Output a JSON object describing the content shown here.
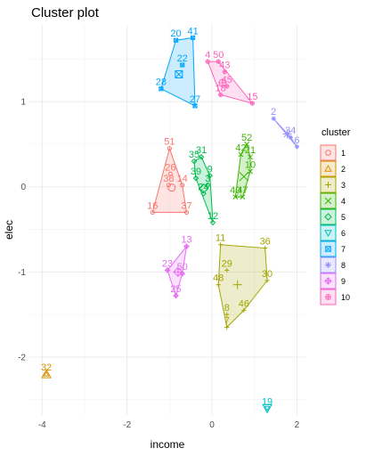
{
  "chart_data": {
    "type": "scatter",
    "title": "Cluster plot",
    "xlabel": "income",
    "ylabel": "elec",
    "xlim": [
      -4.3,
      2.2
    ],
    "ylim": [
      -2.68,
      1.9
    ],
    "xticks": [
      -4,
      -2,
      0,
      2
    ],
    "yticks": [
      -2,
      -1,
      0,
      1
    ],
    "grid": true,
    "legend": {
      "title": "cluster",
      "position": "right"
    },
    "series": [
      {
        "name": "1",
        "color": "#F8766D",
        "shape": "circle",
        "points": [
          {
            "label": "51",
            "x": -1.0,
            "y": 0.45
          },
          {
            "label": "26",
            "x": -0.98,
            "y": 0.15
          },
          {
            "label": "38",
            "x": -1.02,
            "y": 0.02
          },
          {
            "label": "14",
            "x": -0.7,
            "y": 0.02
          },
          {
            "label": "16",
            "x": -1.4,
            "y": -0.3
          },
          {
            "label": "37",
            "x": -0.6,
            "y": -0.3
          }
        ],
        "centroid": {
          "x": -0.95,
          "y": -0.01
        }
      },
      {
        "name": "2",
        "color": "#D89000",
        "shape": "triangle",
        "points": [
          {
            "label": "32",
            "x": -3.9,
            "y": -2.2
          }
        ],
        "centroid": {
          "x": -3.9,
          "y": -2.2
        }
      },
      {
        "name": "3",
        "color": "#A3A500",
        "shape": "plus",
        "points": [
          {
            "label": "11",
            "x": 0.2,
            "y": -0.68
          },
          {
            "label": "36",
            "x": 1.25,
            "y": -0.72
          },
          {
            "label": "29",
            "x": 0.35,
            "y": -0.98
          },
          {
            "label": "30",
            "x": 1.3,
            "y": -1.1
          },
          {
            "label": "48",
            "x": 0.15,
            "y": -1.15
          },
          {
            "label": "46",
            "x": 0.75,
            "y": -1.45
          },
          {
            "label": "8",
            "x": 0.35,
            "y": -1.5
          },
          {
            "label": "7",
            "x": 0.35,
            "y": -1.65
          }
        ],
        "centroid": {
          "x": 0.6,
          "y": -1.15
        }
      },
      {
        "name": "4",
        "color": "#39B600",
        "shape": "x",
        "points": [
          {
            "label": "52",
            "x": 0.82,
            "y": 0.5
          },
          {
            "label": "42",
            "x": 0.68,
            "y": 0.38
          },
          {
            "label": "21",
            "x": 0.9,
            "y": 0.35
          },
          {
            "label": "10",
            "x": 0.9,
            "y": 0.18
          },
          {
            "label": "40",
            "x": 0.55,
            "y": -0.12
          },
          {
            "label": "47",
            "x": 0.72,
            "y": -0.12
          }
        ],
        "centroid": {
          "x": 0.75,
          "y": 0.12
        }
      },
      {
        "name": "5",
        "color": "#00BB4E",
        "shape": "diamond",
        "points": [
          {
            "label": "31",
            "x": -0.25,
            "y": 0.35
          },
          {
            "label": "35",
            "x": -0.42,
            "y": 0.3
          },
          {
            "label": "9",
            "x": -0.05,
            "y": 0.13
          },
          {
            "label": "39",
            "x": -0.38,
            "y": 0.1
          },
          {
            "label": "3",
            "x": -0.1,
            "y": 0.02
          },
          {
            "label": "24",
            "x": -0.2,
            "y": -0.08
          },
          {
            "label": "12",
            "x": 0.02,
            "y": -0.42
          }
        ],
        "centroid": {
          "x": -0.2,
          "y": -0.02
        }
      },
      {
        "name": "6",
        "color": "#00BFC4",
        "shape": "triangle-down",
        "points": [
          {
            "label": "19",
            "x": 1.3,
            "y": -2.6
          }
        ],
        "centroid": {
          "x": 1.3,
          "y": -2.6
        }
      },
      {
        "name": "7",
        "color": "#00A5FF",
        "shape": "square-x",
        "points": [
          {
            "label": "20",
            "x": -0.85,
            "y": 1.72
          },
          {
            "label": "41",
            "x": -0.45,
            "y": 1.75
          },
          {
            "label": "22",
            "x": -0.7,
            "y": 1.43
          },
          {
            "label": "28",
            "x": -1.2,
            "y": 1.15
          },
          {
            "label": "27",
            "x": -0.4,
            "y": 0.95
          }
        ],
        "centroid": {
          "x": -0.78,
          "y": 1.32
        }
      },
      {
        "name": "8",
        "color": "#9590FF",
        "shape": "asterisk",
        "points": [
          {
            "label": "2",
            "x": 1.45,
            "y": 0.8
          },
          {
            "label": "34",
            "x": 1.85,
            "y": 0.58
          },
          {
            "label": "6",
            "x": 2.0,
            "y": 0.47
          }
        ],
        "centroid": {
          "x": 1.77,
          "y": 0.62
        }
      },
      {
        "name": "9",
        "color": "#E76BF3",
        "shape": "diamond-plus",
        "points": [
          {
            "label": "13",
            "x": -0.6,
            "y": -0.7
          },
          {
            "label": "23",
            "x": -1.05,
            "y": -0.98
          },
          {
            "label": "50",
            "x": -0.7,
            "y": -1.02
          },
          {
            "label": "25",
            "x": -0.85,
            "y": -1.28
          }
        ],
        "centroid": {
          "x": -0.8,
          "y": -1.0
        }
      },
      {
        "name": "10",
        "color": "#FF62BC",
        "shape": "circle-plus",
        "points": [
          {
            "label": "4",
            "x": -0.1,
            "y": 1.47
          },
          {
            "label": "50",
            "x": 0.15,
            "y": 1.47
          },
          {
            "label": "43",
            "x": 0.3,
            "y": 1.35
          },
          {
            "label": "45",
            "x": 0.35,
            "y": 1.18
          },
          {
            "label": "18",
            "x": 0.2,
            "y": 1.08
          },
          {
            "label": "15",
            "x": 0.95,
            "y": 0.98
          }
        ],
        "centroid": {
          "x": 0.25,
          "y": 1.22
        }
      }
    ]
  }
}
